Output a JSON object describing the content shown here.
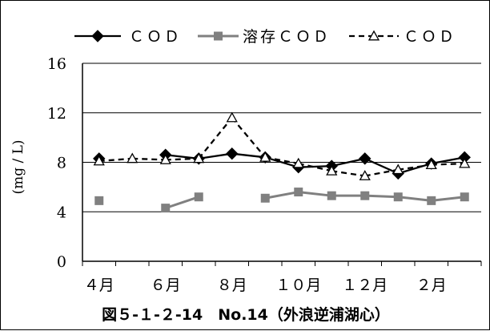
{
  "chart_data": {
    "type": "line",
    "caption": "図５-１-２-14　No.14（外浪逆浦湖心）",
    "ylabel": "(mg / L)",
    "ylim": [
      0,
      16
    ],
    "yticks": [
      0,
      4,
      8,
      12,
      16
    ],
    "grid": true,
    "legend_position": "top",
    "x_tick_labels": [
      "４月",
      "６月",
      "８月",
      "１０月",
      "１２月",
      "２月"
    ],
    "x": [
      1,
      2,
      3,
      4,
      5,
      6,
      7,
      8,
      9,
      10,
      11,
      12
    ],
    "series": [
      {
        "name": "ＣＯＤ",
        "style": "solid",
        "marker": "diamond",
        "color": "#000000",
        "values": [
          8.3,
          null,
          8.6,
          8.3,
          8.7,
          8.4,
          7.6,
          7.7,
          8.3,
          7.1,
          7.9,
          8.4
        ]
      },
      {
        "name": "溶存ＣＯＤ",
        "style": "solid",
        "marker": "square",
        "color": "#808080",
        "values": [
          4.9,
          null,
          4.3,
          5.2,
          null,
          5.1,
          5.6,
          5.3,
          5.3,
          5.2,
          4.9,
          5.2
        ]
      },
      {
        "name": "ＣＯＤ",
        "style": "dashed",
        "marker": "triangle-open",
        "color": "#000000",
        "values": [
          8.1,
          8.3,
          8.2,
          8.3,
          11.6,
          8.4,
          7.9,
          7.3,
          6.9,
          7.4,
          7.8,
          7.9
        ]
      }
    ]
  }
}
